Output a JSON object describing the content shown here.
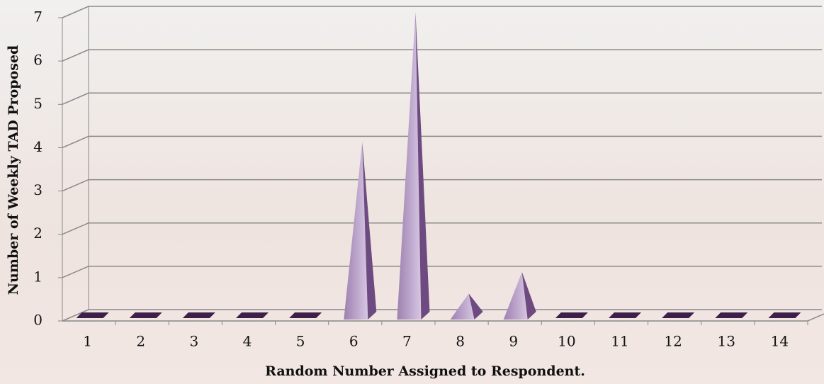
{
  "chart_data": {
    "type": "pyramid",
    "x_label": "Random Number Assigned to Respondent.",
    "y_label": "Number of Weekly TAD Proposed",
    "categories": [
      "1",
      "2",
      "3",
      "4",
      "5",
      "6",
      "7",
      "8",
      "9",
      "10",
      "11",
      "12",
      "13",
      "14"
    ],
    "values": [
      0,
      0,
      0,
      0,
      0,
      4,
      7,
      0.5,
      1,
      0,
      0,
      0,
      0,
      0
    ],
    "color": "#b89cc8",
    "ylim": [
      0,
      7
    ],
    "yticks": [
      0,
      1,
      2,
      3,
      4,
      5,
      6,
      7
    ],
    "grid": true
  }
}
